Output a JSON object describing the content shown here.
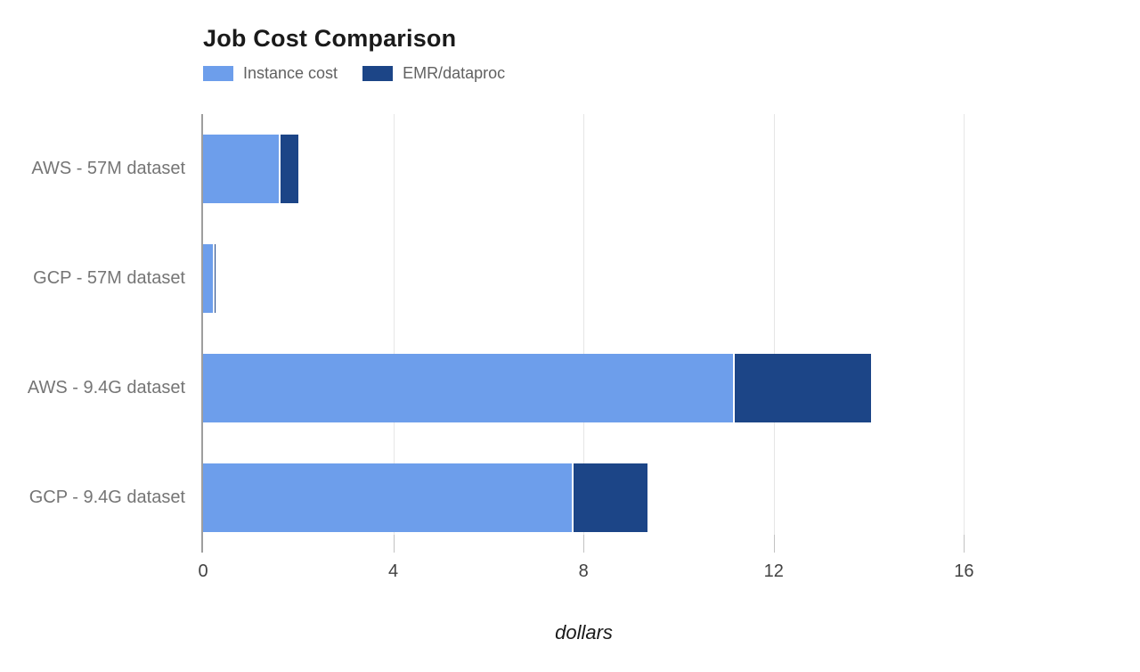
{
  "chart_data": {
    "type": "bar",
    "variant": "horizontal-stacked",
    "title": "Job Cost Comparison",
    "xlabel": "dollars",
    "categories": [
      "AWS - 57M dataset",
      "GCP - 57M dataset",
      "AWS - 9.4G dataset",
      "GCP - 9.4G dataset"
    ],
    "series": [
      {
        "name": "Instance cost",
        "color": "#6d9eeb",
        "values": [
          1.6,
          0.21,
          11.15,
          7.75
        ]
      },
      {
        "name": "EMR/dataproc",
        "color": "#1c4587",
        "values": [
          0.4,
          0.05,
          2.9,
          1.6
        ]
      }
    ],
    "totals": [
      2.0,
      0.26,
      14.05,
      9.35
    ],
    "xticks": [
      0,
      4,
      8,
      12,
      16
    ],
    "xlim": [
      0,
      18
    ],
    "grid": true,
    "legend_position": "top-left",
    "colors": {
      "instance_cost": "#6d9eeb",
      "emr_dataproc": "#1c4587",
      "gridline": "#e6e6e6",
      "axis_line": "#9e9e9e",
      "category_label": "#757575",
      "tick_label": "#424242",
      "title": "#1a1a1a",
      "background": "#ffffff"
    }
  }
}
